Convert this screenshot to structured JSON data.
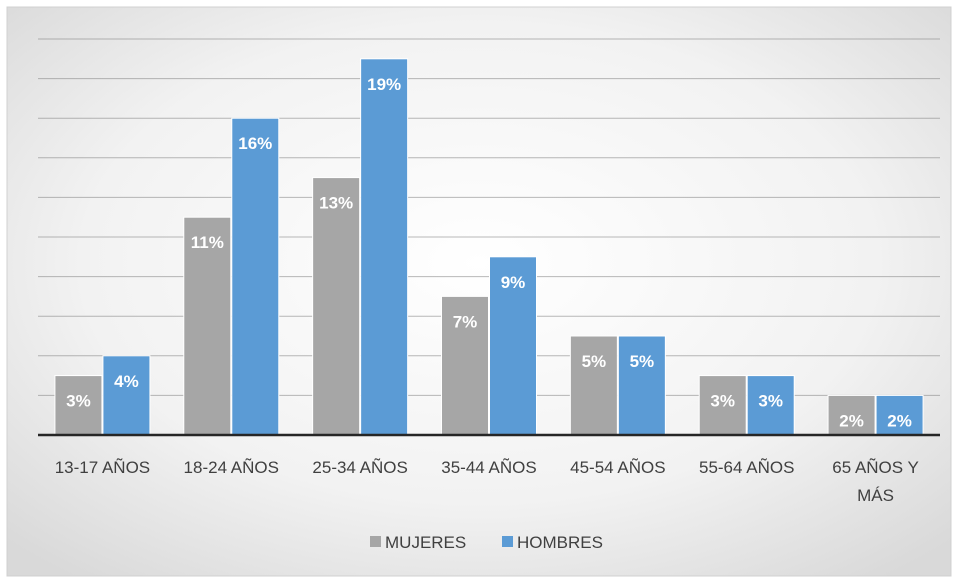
{
  "chart_data": {
    "type": "bar",
    "categories": [
      "13-17 AÑOS",
      "18-24 AÑOS",
      "25-34 AÑOS",
      "35-44 AÑOS",
      "45-54 AÑOS",
      "55-64 AÑOS",
      "65 AÑOS Y MÁS"
    ],
    "series": [
      {
        "name": "MUJERES",
        "values": [
          3,
          11,
          13,
          7,
          5,
          3,
          2
        ],
        "labels": [
          "3%",
          "11%",
          "13%",
          "7%",
          "5%",
          "3%",
          "2%"
        ],
        "color": "#a6a6a6"
      },
      {
        "name": "HOMBRES",
        "values": [
          4,
          16,
          19,
          9,
          5,
          3,
          2
        ],
        "labels": [
          "4%",
          "16%",
          "19%",
          "9%",
          "5%",
          "3%",
          "2%"
        ],
        "color": "#5b9bd5"
      }
    ],
    "title": "",
    "xlabel": "",
    "ylabel": "",
    "ylim": [
      0,
      20
    ],
    "grid": true,
    "legend": "bottom-center",
    "colors": {
      "background_center": "#ffffff",
      "background_edge": "#d9d9d9",
      "gridline": "#7f7f7f",
      "axis": "#262626"
    }
  }
}
